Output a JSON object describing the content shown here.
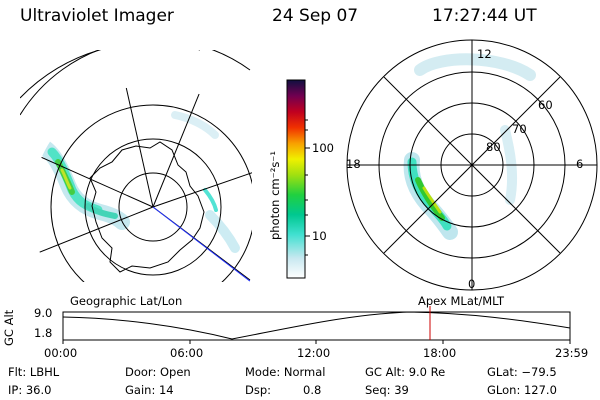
{
  "header": {
    "title": "Ultraviolet Imager",
    "date": "24 Sep 07",
    "time": "17:27:44 UT"
  },
  "colorbar": {
    "unit": "photon cm⁻²s⁻¹",
    "ticks": [
      {
        "label": "100",
        "value": 100
      },
      {
        "label": "10",
        "value": 10
      }
    ]
  },
  "geo_panel": {
    "label": "Geographic Lat/Lon"
  },
  "polar_panel": {
    "label": "Apex MLat/MLT",
    "mlt_labels": [
      {
        "label": "12",
        "pos": "top"
      },
      {
        "label": "18",
        "pos": "left"
      },
      {
        "label": "6",
        "pos": "right"
      },
      {
        "label": "0",
        "pos": "bottom"
      }
    ],
    "lat_labels": [
      "60",
      "70",
      "80"
    ]
  },
  "altitude_plot": {
    "ylabel": "GC Alt",
    "yticks": [
      "9.0",
      "1.8"
    ],
    "xticks": [
      "00:00",
      "06:00",
      "12:00",
      "18:00",
      "23:59"
    ],
    "marker_color": "#cc0000"
  },
  "info": {
    "flt": "Flt: LBHL",
    "ip": "IP: 36.0",
    "door": "Door: Open",
    "gain": "Gain: 14",
    "mode": "Mode: Normal",
    "dsp_label": "Dsp:",
    "dsp_value": "0.8",
    "gc_alt": "GC Alt: 9.0 Re",
    "seq": "Seq: 39",
    "glat": "GLat: −79.5",
    "glon": "GLon: 127.0"
  }
}
